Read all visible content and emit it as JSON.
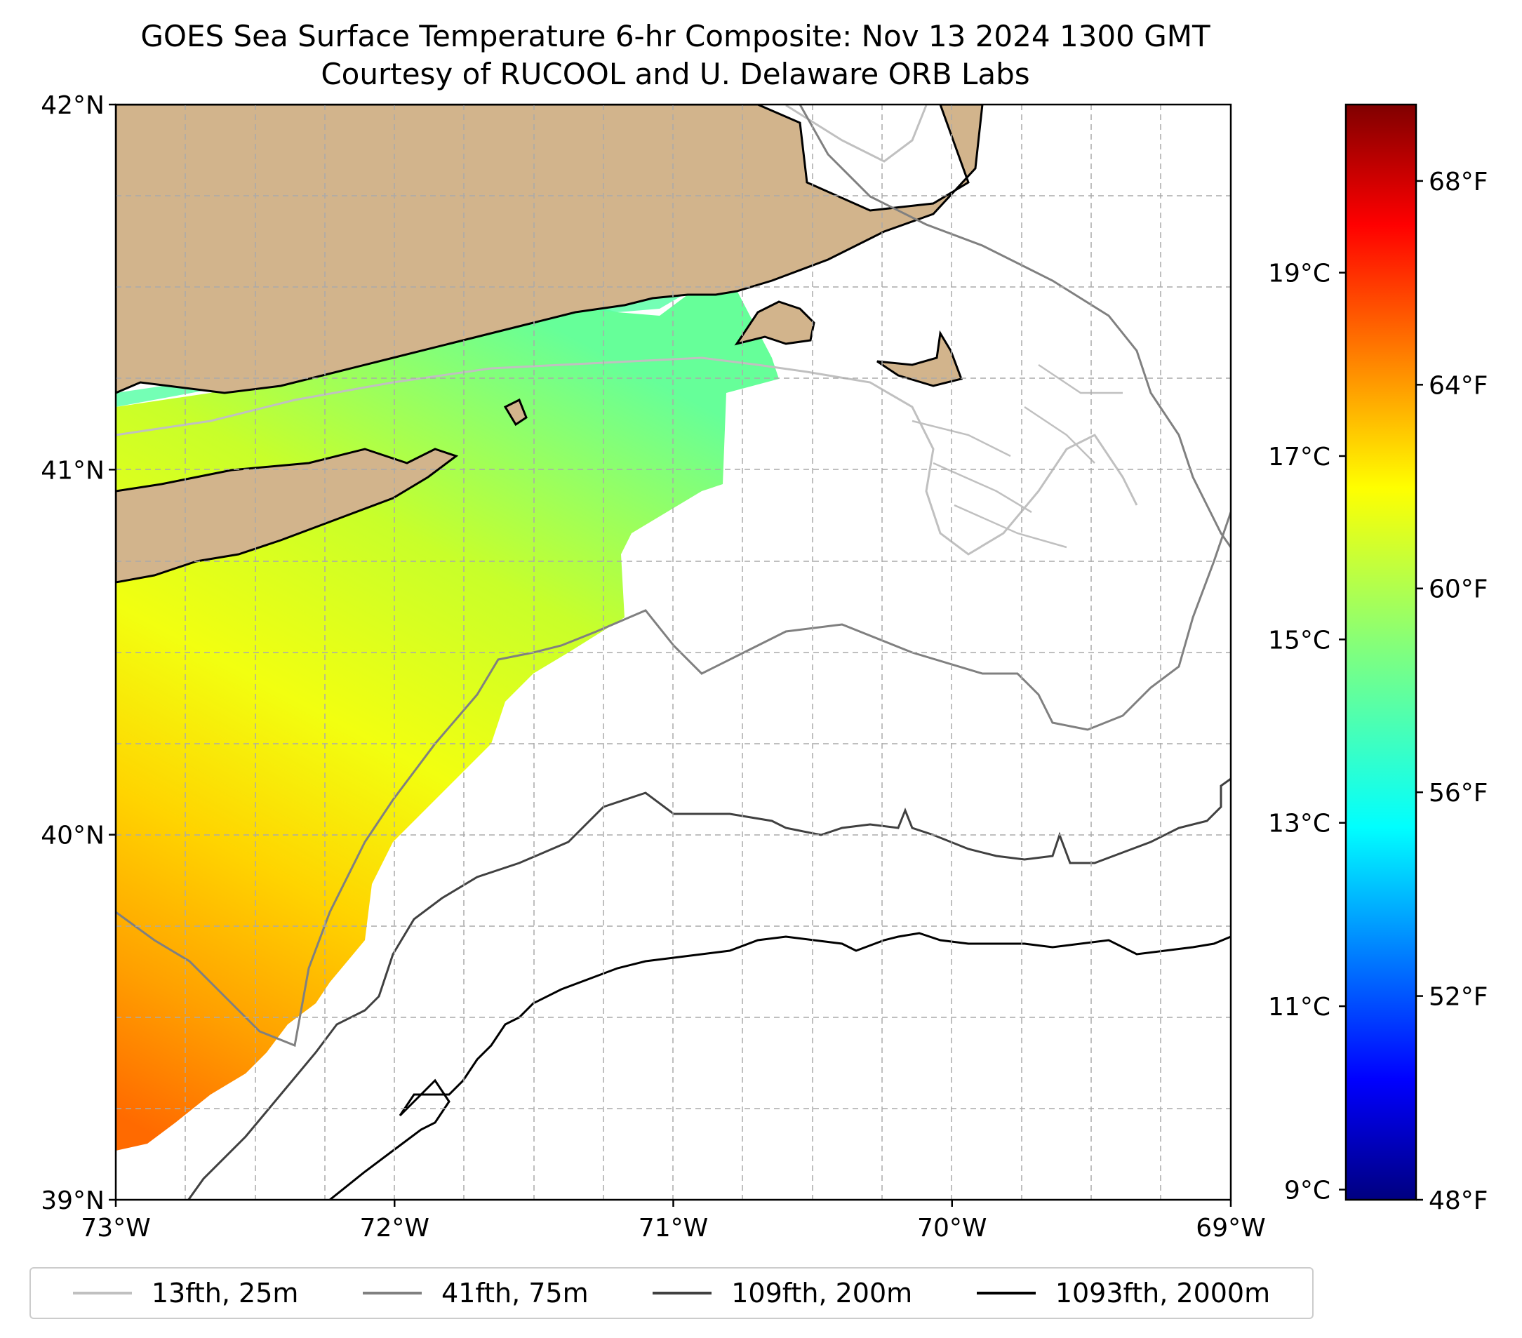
{
  "title": {
    "line1": "GOES Sea Surface Temperature 6-hr Composite: Nov 13 2024 1300 GMT",
    "line2": "Courtesy of RUCOOL and U. Delaware ORB Labs"
  },
  "map": {
    "extent": {
      "lon_min": -73,
      "lon_max": -69,
      "lat_min": 39,
      "lat_max": 42
    },
    "lat_ticks": [
      {
        "value": 42,
        "label": "42°N"
      },
      {
        "value": 41,
        "label": "41°N"
      },
      {
        "value": 40,
        "label": "40°N"
      },
      {
        "value": 39,
        "label": "39°N"
      }
    ],
    "lon_ticks": [
      {
        "value": -73,
        "label": "73°W"
      },
      {
        "value": -72,
        "label": "72°W"
      },
      {
        "value": -71,
        "label": "71°W"
      },
      {
        "value": -70,
        "label": "70°W"
      },
      {
        "value": -69,
        "label": "69°W"
      }
    ],
    "gridlines": true,
    "land_color": "#d2b48c",
    "water_color": "#ffffff"
  },
  "colorbar": {
    "colormap": "jet",
    "celsius_ticks": [
      {
        "value": 19,
        "label": "19°C"
      },
      {
        "value": 17,
        "label": "17°C"
      },
      {
        "value": 15,
        "label": "15°C"
      },
      {
        "value": 13,
        "label": "13°C"
      },
      {
        "value": 11,
        "label": "11°C"
      },
      {
        "value": 9,
        "label": "9°C"
      }
    ],
    "fahrenheit_ticks": [
      {
        "value": 68,
        "label": "68°F"
      },
      {
        "value": 64,
        "label": "64°F"
      },
      {
        "value": 60,
        "label": "60°F"
      },
      {
        "value": 56,
        "label": "56°F"
      },
      {
        "value": 52,
        "label": "52°F"
      },
      {
        "value": 48,
        "label": "48°F"
      }
    ],
    "range_f": [
      48,
      69.5
    ]
  },
  "legend": {
    "items": [
      {
        "label": "13fth, 25m",
        "color": "#c0c0c0"
      },
      {
        "label": "41fth, 75m",
        "color": "#808080"
      },
      {
        "label": "109fth, 200m",
        "color": "#404040"
      },
      {
        "label": "1093fth, 2000m",
        "color": "#000000"
      }
    ]
  }
}
